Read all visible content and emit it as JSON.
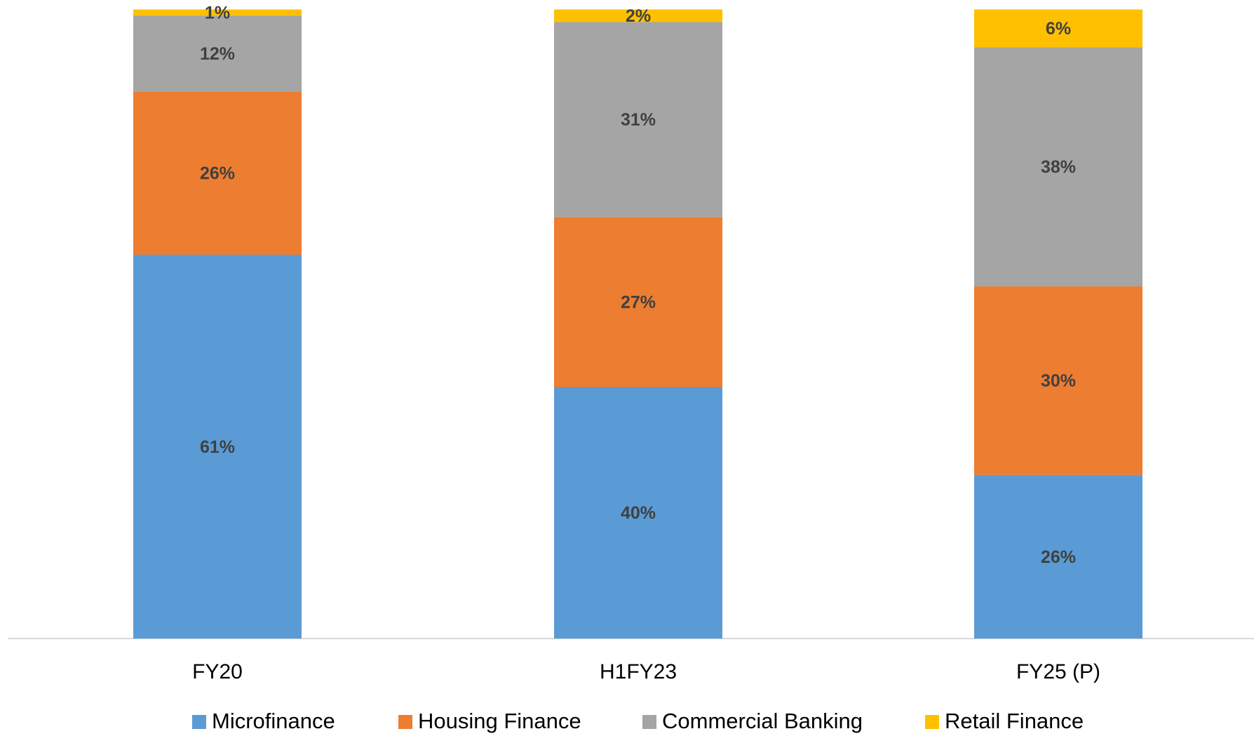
{
  "chart_data": {
    "type": "stacked_bar",
    "categories": [
      "FY20",
      "H1FY23",
      "FY25 (P)"
    ],
    "ylim": [
      0,
      100
    ],
    "series": [
      {
        "name": "Microfinance",
        "color": "#5b9bd5",
        "values": [
          61,
          40,
          26
        ],
        "value_labels": [
          "61%",
          "40%",
          "26%"
        ]
      },
      {
        "name": "Housing Finance",
        "color": "#ed7d31",
        "values": [
          26,
          27,
          30
        ],
        "value_labels": [
          "26%",
          "27%",
          "30%"
        ]
      },
      {
        "name": "Commercial Banking",
        "color": "#a5a5a5",
        "values": [
          12,
          31,
          38
        ],
        "value_labels": [
          "12%",
          "31%",
          "38%"
        ]
      },
      {
        "name": "Retail Finance",
        "color": "#ffc000",
        "values": [
          1,
          2,
          6
        ],
        "value_labels": [
          "1%",
          "2%",
          "6%"
        ]
      }
    ],
    "legend": "bottom"
  }
}
